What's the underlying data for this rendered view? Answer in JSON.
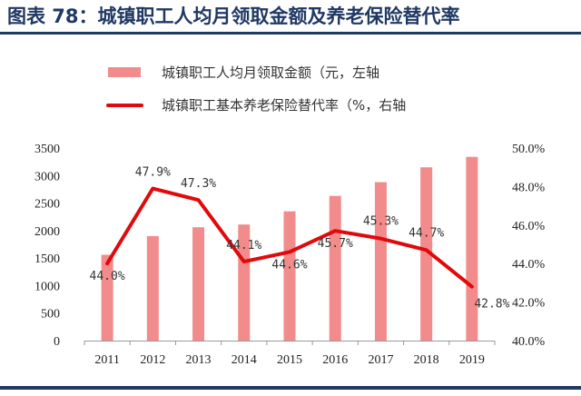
{
  "figure": {
    "title": "图表  78：城镇职工人均月领取金额及养老保险替代率"
  },
  "colors": {
    "title": "#1f3864",
    "bar": "#f28b8b",
    "line": "#e0090b",
    "axis": "#999999",
    "text": "#333333"
  },
  "chart_data": {
    "type": "bar",
    "categories": [
      "2011",
      "2012",
      "2013",
      "2014",
      "2015",
      "2016",
      "2017",
      "2018",
      "2019"
    ],
    "series": [
      {
        "name": "城镇职工人均月领取金额（元，左轴",
        "type": "bar",
        "axis": "left",
        "values": [
          1560,
          1900,
          2060,
          2110,
          2350,
          2630,
          2880,
          3150,
          3340
        ]
      },
      {
        "name": "城镇职工基本养老保险替代率（%，右轴",
        "type": "line",
        "axis": "right",
        "values": [
          44.0,
          47.9,
          47.3,
          44.1,
          44.6,
          45.7,
          45.3,
          44.7,
          42.8
        ],
        "data_labels": [
          "44.0%",
          "47.9%",
          "47.3%",
          "44.1%",
          "44.6%",
          "45.7%",
          "45.3%",
          "44.7%",
          "42.8%"
        ]
      }
    ],
    "left_axis": {
      "range": [
        0,
        3500
      ],
      "ticks": [
        "0",
        "500",
        "1000",
        "1500",
        "2000",
        "2500",
        "3000",
        "3500"
      ]
    },
    "right_axis": {
      "range": [
        40.0,
        50.0
      ],
      "ticks": [
        "40.0%",
        "42.0%",
        "44.0%",
        "46.0%",
        "48.0%",
        "50.0%"
      ]
    },
    "grid": false,
    "legend_position": "top-center"
  }
}
